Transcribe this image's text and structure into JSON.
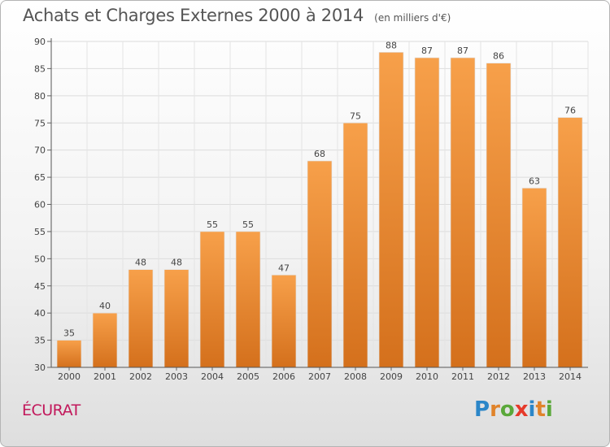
{
  "chart_data": {
    "type": "bar",
    "title": "Achats et Charges Externes 2000 à 2014",
    "unit": "(en milliers d'€)",
    "categories": [
      "2000",
      "2001",
      "2002",
      "2003",
      "2004",
      "2005",
      "2006",
      "2007",
      "2008",
      "2009",
      "2010",
      "2011",
      "2012",
      "2013",
      "2014"
    ],
    "values": [
      35,
      40,
      48,
      48,
      55,
      55,
      47,
      68,
      75,
      88,
      87,
      87,
      86,
      63,
      76
    ],
    "ylim": [
      30,
      90
    ],
    "yticks": [
      30,
      35,
      40,
      45,
      50,
      55,
      60,
      65,
      70,
      75,
      80,
      85,
      90
    ],
    "grid": true,
    "data_labels": true,
    "bar_color_top": "#f7a04a",
    "bar_color_bottom": "#d4701c"
  },
  "place": "ÉCURAT",
  "logo": {
    "text": "Proxiti",
    "letter_colors": [
      "#2b86c8",
      "#e0832a",
      "#5aa83a",
      "#e63a2a",
      "#2b86c8",
      "#e0832a",
      "#5aa83a"
    ]
  }
}
